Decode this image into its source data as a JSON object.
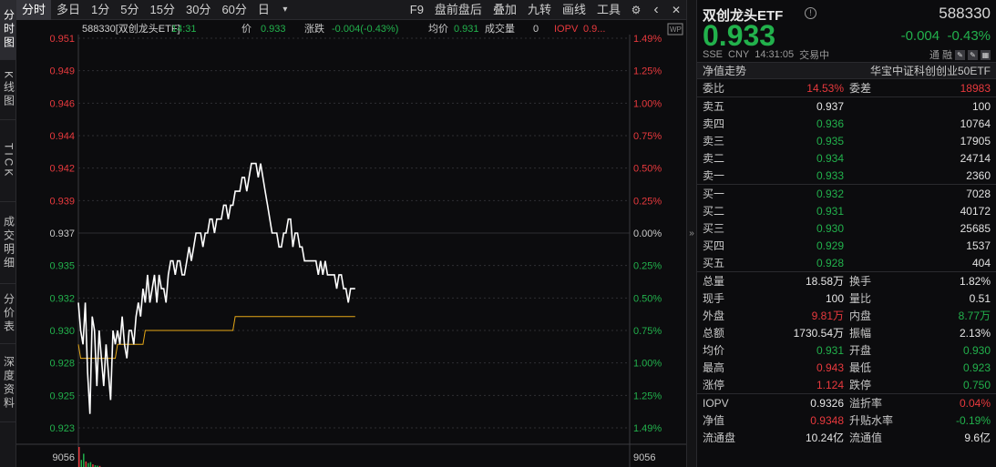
{
  "left_tabs": [
    "分时图",
    "K线图",
    "TICK",
    "成交明细",
    "分价表",
    "深度资料"
  ],
  "toolbar": {
    "periods": [
      "分时",
      "多日",
      "1分",
      "5分",
      "15分",
      "30分",
      "60分",
      "日"
    ],
    "dropdown_icon": "caret-down-icon",
    "tools": [
      "F9",
      "盘前盘后",
      "叠加",
      "九转",
      "画线",
      "工具"
    ],
    "icons": [
      "gear-icon",
      "back-icon",
      "close-icon"
    ]
  },
  "chart_header": {
    "symbol": "588330[双创龙头ETF]",
    "time": "14:31",
    "price_label": "价",
    "price": "0.933",
    "chg_label": "涨跌",
    "chg": "-0.004(-0.43%)",
    "avg_label": "均价",
    "avg": "0.931",
    "vol_label": "成交量",
    "vol": "0",
    "iopv_label": "IOPV",
    "iopv": "0.9..."
  },
  "chart_data": {
    "type": "line",
    "prev_close": 0.937,
    "ylim": [
      0.923,
      0.951
    ],
    "y_ticks_left": [
      "0.951",
      "0.949",
      "0.946",
      "0.944",
      "0.942",
      "0.939",
      "0.937",
      "0.935",
      "0.932",
      "0.930",
      "0.928",
      "0.925",
      "0.923"
    ],
    "y_ticks_right": [
      "1.49%",
      "1.25%",
      "1.00%",
      "0.75%",
      "0.50%",
      "0.25%",
      "0.00%",
      "0.25%",
      "0.50%",
      "0.75%",
      "1.00%",
      "1.25%",
      "1.49%"
    ],
    "volume_axis_label": "9056",
    "price_series": [
      0.932,
      0.93,
      0.929,
      0.932,
      0.927,
      0.924,
      0.931,
      0.93,
      0.926,
      0.93,
      0.928,
      0.926,
      0.929,
      0.927,
      0.925,
      0.93,
      0.929,
      0.93,
      0.929,
      0.931,
      0.929,
      0.928,
      0.93,
      0.93,
      0.929,
      0.931,
      0.932,
      0.931,
      0.933,
      0.932,
      0.934,
      0.932,
      0.933,
      0.934,
      0.932,
      0.934,
      0.933,
      0.933,
      0.932,
      0.934,
      0.935,
      0.935,
      0.934,
      0.935,
      0.935,
      0.934,
      0.934,
      0.935,
      0.936,
      0.935,
      0.936,
      0.937,
      0.937,
      0.937,
      0.936,
      0.937,
      0.937,
      0.938,
      0.938,
      0.937,
      0.938,
      0.938,
      0.938,
      0.939,
      0.939,
      0.938,
      0.939,
      0.939,
      0.94,
      0.94,
      0.94,
      0.941,
      0.941,
      0.94,
      0.941,
      0.942,
      0.942,
      0.942,
      0.941,
      0.942,
      0.941,
      0.94,
      0.939,
      0.938,
      0.937,
      0.937,
      0.937,
      0.936,
      0.936,
      0.937,
      0.937,
      0.938,
      0.938,
      0.936,
      0.937,
      0.937,
      0.936,
      0.936,
      0.935,
      0.935,
      0.935,
      0.935,
      0.935,
      0.935,
      0.934,
      0.935,
      0.934,
      0.935,
      0.934,
      0.934,
      0.934,
      0.934,
      0.933,
      0.934,
      0.934,
      0.933,
      0.933,
      0.932,
      0.933,
      0.933,
      0.933
    ],
    "avg_series": [
      0.929,
      0.928,
      0.928,
      0.928,
      0.928,
      0.928,
      0.928,
      0.928,
      0.928,
      0.928,
      0.928,
      0.928,
      0.928,
      0.928,
      0.928,
      0.928,
      0.928,
      0.929,
      0.929,
      0.929,
      0.929,
      0.929,
      0.929,
      0.929,
      0.929,
      0.929,
      0.929,
      0.929,
      0.929,
      0.93,
      0.93,
      0.93,
      0.93,
      0.93,
      0.93,
      0.93,
      0.93,
      0.93,
      0.93,
      0.93,
      0.93,
      0.93,
      0.93,
      0.93,
      0.93,
      0.93,
      0.93,
      0.93,
      0.93,
      0.93,
      0.93,
      0.93,
      0.93,
      0.93,
      0.93,
      0.93,
      0.93,
      0.93,
      0.93,
      0.93,
      0.93,
      0.93,
      0.93,
      0.93,
      0.93,
      0.93,
      0.93,
      0.93,
      0.931,
      0.931,
      0.931,
      0.931,
      0.931,
      0.931,
      0.931,
      0.931,
      0.931,
      0.931,
      0.931,
      0.931,
      0.931,
      0.931,
      0.931,
      0.931,
      0.931,
      0.931,
      0.931,
      0.931,
      0.931,
      0.931,
      0.931,
      0.931,
      0.931,
      0.931,
      0.931,
      0.931,
      0.931,
      0.931,
      0.931,
      0.931,
      0.931,
      0.931,
      0.931,
      0.931,
      0.931,
      0.931,
      0.931,
      0.931,
      0.931,
      0.931,
      0.931,
      0.931,
      0.931,
      0.931,
      0.931,
      0.931,
      0.931,
      0.931,
      0.931,
      0.931,
      0.931
    ],
    "total_points": 240,
    "volume_bars": [
      9056,
      3200,
      6000,
      2500,
      1800,
      2200,
      1200,
      800,
      600,
      500,
      0,
      0,
      0,
      0,
      0,
      0,
      0,
      0,
      0,
      0,
      0,
      0,
      0,
      0,
      0,
      0,
      0,
      0,
      0,
      0,
      0,
      0,
      0,
      0,
      0,
      0,
      0,
      0,
      0,
      0,
      0,
      0,
      0,
      0,
      0,
      0,
      0,
      0,
      0,
      0,
      0,
      0,
      0,
      0,
      0,
      0,
      0,
      0,
      0,
      0,
      0,
      0,
      0,
      0,
      0,
      0,
      0,
      0,
      0,
      0,
      0,
      0,
      0,
      0,
      0,
      0,
      0,
      0,
      0,
      0,
      0,
      0,
      0,
      0,
      0,
      0,
      0,
      0,
      0,
      0,
      0,
      0,
      0,
      0,
      0,
      0,
      0,
      0,
      0,
      0,
      0,
      0,
      0,
      0,
      0,
      0,
      0,
      0,
      0,
      0,
      0,
      0,
      0,
      0,
      0,
      0,
      0,
      0,
      0,
      0,
      0
    ],
    "colors": {
      "price": "#ffffff",
      "avg": "#e6a817",
      "up": "#e8393d",
      "down": "#22b14c",
      "grid": "#2e2e33"
    }
  },
  "quote": {
    "name": "双创龙头ETF",
    "info_icon": "info-icon",
    "code": "588330",
    "price": "0.933",
    "chg": "-0.004",
    "chg_pct": "-0.43%",
    "exch": "SSE",
    "currency": "CNY",
    "time": "14:31:05",
    "status": "交易中",
    "tag_tong": "通",
    "tag_rong": "融",
    "nav_label": "净值走势",
    "index_name": "华宝中证科创创业50ETF",
    "weibi_label": "委比",
    "weibi": "14.53%",
    "weicha_label": "委差",
    "weicha": "18983",
    "asks": [
      {
        "label": "卖五",
        "price": "0.937",
        "vol": "100",
        "color": "white"
      },
      {
        "label": "卖四",
        "price": "0.936",
        "vol": "10764",
        "color": "green"
      },
      {
        "label": "卖三",
        "price": "0.935",
        "vol": "17905",
        "color": "green"
      },
      {
        "label": "卖二",
        "price": "0.934",
        "vol": "24714",
        "color": "green"
      },
      {
        "label": "卖一",
        "price": "0.933",
        "vol": "2360",
        "color": "green"
      }
    ],
    "bids": [
      {
        "label": "买一",
        "price": "0.932",
        "vol": "7028",
        "color": "green"
      },
      {
        "label": "买二",
        "price": "0.931",
        "vol": "40172",
        "color": "green"
      },
      {
        "label": "买三",
        "price": "0.930",
        "vol": "25685",
        "color": "green"
      },
      {
        "label": "买四",
        "price": "0.929",
        "vol": "1537",
        "color": "green"
      },
      {
        "label": "买五",
        "price": "0.928",
        "vol": "404",
        "color": "green"
      }
    ],
    "stats": [
      {
        "l1": "总量",
        "v1": "18.58万",
        "c1": "white",
        "l2": "换手",
        "v2": "1.82%",
        "c2": "white"
      },
      {
        "l1": "现手",
        "v1": "100",
        "c1": "white",
        "l2": "量比",
        "v2": "0.51",
        "c2": "white"
      },
      {
        "l1": "外盘",
        "v1": "9.81万",
        "c1": "red",
        "l2": "内盘",
        "v2": "8.77万",
        "c2": "green"
      },
      {
        "l1": "总额",
        "v1": "1730.54万",
        "c1": "white",
        "l2": "振幅",
        "v2": "2.13%",
        "c2": "white"
      },
      {
        "l1": "均价",
        "v1": "0.931",
        "c1": "green",
        "l2": "开盘",
        "v2": "0.930",
        "c2": "green"
      },
      {
        "l1": "最高",
        "v1": "0.943",
        "c1": "red",
        "l2": "最低",
        "v2": "0.923",
        "c2": "green"
      },
      {
        "l1": "涨停",
        "v1": "1.124",
        "c1": "red",
        "l2": "跌停",
        "v2": "0.750",
        "c2": "green"
      }
    ],
    "extra": [
      {
        "l1": "IOPV",
        "v1": "0.9326",
        "c1": "white",
        "l2": "溢折率",
        "v2": "0.04%",
        "c2": "red"
      },
      {
        "l1": "净值",
        "v1": "0.9348",
        "c1": "red",
        "l2": "升贴水率",
        "v2": "-0.19%",
        "c2": "green"
      },
      {
        "l1": "流通盘",
        "v1": "10.24亿",
        "c1": "white",
        "l2": "流通值",
        "v2": "9.6亿",
        "c2": "white"
      }
    ]
  }
}
